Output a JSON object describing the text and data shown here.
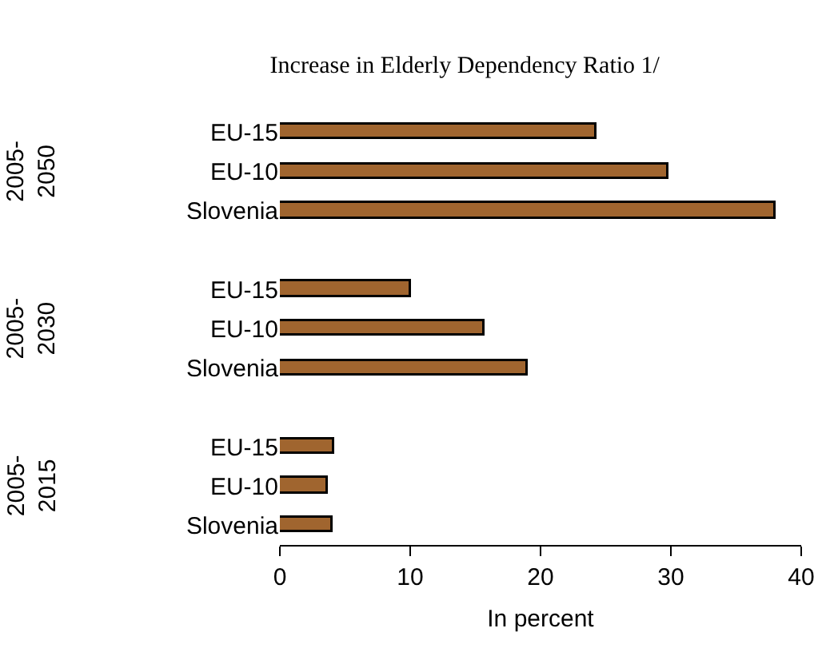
{
  "chart_data": {
    "type": "bar",
    "orientation": "horizontal",
    "title": "Increase in Elderly Dependency Ratio 1/",
    "xlabel": "In percent",
    "categories": [
      "EU-15",
      "EU-10",
      "Slovenia",
      null,
      "EU-15",
      "EU-10",
      "Slovenia",
      null,
      "EU-15",
      "EU-10",
      "Slovenia"
    ],
    "values": [
      24.3,
      29.8,
      38.0,
      null,
      10.0,
      15.7,
      19.0,
      null,
      4.2,
      3.7,
      4.0
    ],
    "color": "#a0652f",
    "annotations": [
      "2005-2050",
      "2005-2030",
      "2005-2015"
    ],
    "xlim": [
      0,
      40
    ],
    "xticks": [
      0,
      10,
      20,
      30,
      40
    ]
  }
}
